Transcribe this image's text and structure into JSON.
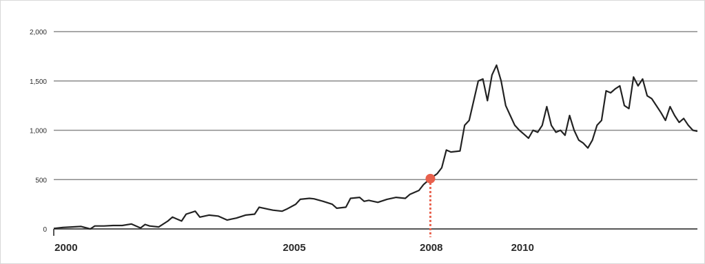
{
  "chart_data": {
    "type": "line",
    "title": "",
    "xlabel": "",
    "ylabel": "",
    "xlim": [
      1999.7,
      2013.8
    ],
    "ylim": [
      0,
      2000
    ],
    "grid": true,
    "yticks": [
      {
        "value": 0,
        "label": "0"
      },
      {
        "value": 500,
        "label": "500"
      },
      {
        "value": 1000,
        "label": "1,000"
      },
      {
        "value": 1500,
        "label": "1,500"
      },
      {
        "value": 2000,
        "label": "2,000"
      }
    ],
    "xticks": [
      {
        "value": 2000,
        "label": "2000"
      },
      {
        "value": 2005,
        "label": "2005"
      },
      {
        "value": 2008,
        "label": "2008",
        "highlight": true
      },
      {
        "value": 2010,
        "label": "2010"
      }
    ],
    "highlight": {
      "x": 2007.95,
      "y": 510,
      "label": "2008",
      "color": "#e8604c"
    },
    "colors": {
      "line": "#222222",
      "grid": "#8a8a8a",
      "highlight": "#e8604c",
      "ytick": "#2a2a2a",
      "xtick": "#2a2a2a"
    },
    "series": [
      {
        "x": [
          1999.7,
          1999.9,
          2000.1,
          2000.3,
          2000.5,
          2000.6,
          2000.8,
          2001.0,
          2001.2,
          2001.4,
          2001.6,
          2001.7,
          2001.8,
          2002.0,
          2002.2,
          2002.3,
          2002.5,
          2002.6,
          2002.8,
          2002.9,
          2003.1,
          2003.3,
          2003.5,
          2003.6,
          2003.7,
          2003.9,
          2004.1,
          2004.2,
          2004.4,
          2004.5,
          2004.7,
          2004.8,
          2005.0,
          2005.1,
          2005.3,
          2005.4,
          2005.6,
          2005.8,
          2005.9,
          2006.1,
          2006.2,
          2006.4,
          2006.5,
          2006.6,
          2006.8,
          2007.0,
          2007.2,
          2007.4,
          2007.5,
          2007.7,
          2007.8,
          2007.95,
          2008.1,
          2008.2,
          2008.3,
          2008.4,
          2008.6,
          2008.7,
          2008.8,
          2009.0,
          2009.1,
          2009.2,
          2009.3,
          2009.4,
          2009.5,
          2009.6,
          2009.7,
          2009.8,
          2009.9,
          2010.0,
          2010.1,
          2010.2,
          2010.3,
          2010.4,
          2010.5,
          2010.6,
          2010.7,
          2010.8,
          2010.9,
          2011.0,
          2011.1,
          2011.2,
          2011.3,
          2011.4,
          2011.5,
          2011.6,
          2011.7,
          2011.8,
          2011.9,
          2012.0,
          2012.1,
          2012.2,
          2012.3,
          2012.4,
          2012.5,
          2012.6,
          2012.7,
          2012.8,
          2012.9,
          2013.0,
          2013.1,
          2013.2,
          2013.3,
          2013.4,
          2013.5,
          2013.6,
          2013.7,
          2013.8
        ],
        "values": [
          5,
          15,
          20,
          25,
          0,
          30,
          30,
          35,
          35,
          50,
          10,
          45,
          30,
          20,
          80,
          120,
          80,
          150,
          180,
          120,
          140,
          130,
          90,
          100,
          110,
          140,
          150,
          220,
          200,
          190,
          180,
          200,
          250,
          300,
          310,
          305,
          280,
          250,
          210,
          220,
          310,
          320,
          280,
          290,
          270,
          300,
          320,
          310,
          350,
          390,
          450,
          510,
          560,
          620,
          800,
          780,
          790,
          1050,
          1100,
          1500,
          1520,
          1300,
          1560,
          1660,
          1500,
          1250,
          1150,
          1050,
          1000,
          960,
          920,
          1000,
          980,
          1050,
          1240,
          1050,
          980,
          1000,
          950,
          1150,
          1000,
          900,
          870,
          820,
          900,
          1050,
          1100,
          1400,
          1380,
          1420,
          1450,
          1250,
          1220,
          1540,
          1450,
          1520,
          1350,
          1320,
          1250,
          1180,
          1100,
          1240,
          1150,
          1080,
          1120,
          1050,
          1000,
          990
        ]
      }
    ]
  }
}
